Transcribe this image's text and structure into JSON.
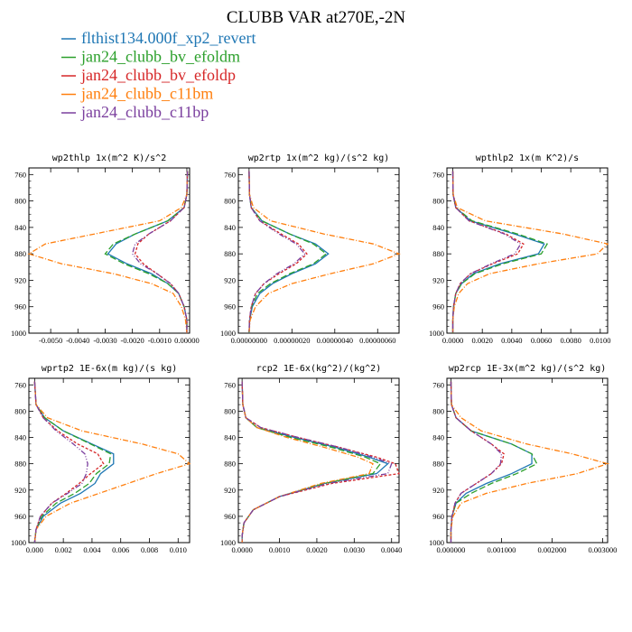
{
  "figure": {
    "title": "CLUBB VAR at270E,-2N"
  },
  "legend": [
    {
      "label": "flthist134.000f_xp2_revert",
      "color": "#1f77b4",
      "dash": "solid"
    },
    {
      "label": "jan24_clubb_bv_efoldm",
      "color": "#2ca02c",
      "dash": "longdash"
    },
    {
      "label": "jan24_clubb_bv_efoldp",
      "color": "#d62728",
      "dash": "dash"
    },
    {
      "label": "jan24_clubb_c11bm",
      "color": "#ff7f0e",
      "dash": "dashdot"
    },
    {
      "label": "jan24_clubb_c11bp",
      "color": "#7b3f9e",
      "dash": "dashdotdot"
    }
  ],
  "chart_data": [
    {
      "type": "line",
      "title": "wp2thlp  1x(m^2 K)/s^2",
      "xlim": [
        -0.0058,
        0.0001
      ],
      "ylim": [
        750,
        1000
      ],
      "y_reversed": true,
      "xticks": [
        -0.005,
        -0.004,
        -0.003,
        -0.002,
        -0.001,
        0.0
      ],
      "xtick_labels": [
        "-0.0050",
        "-0.0040",
        "-0.0030",
        "-0.0020",
        "-0.0010",
        "0.00000"
      ],
      "yticks": [
        760,
        800,
        840,
        880,
        920,
        960,
        1000
      ],
      "ytick_labels": [
        "760",
        "800",
        "840",
        "880",
        "920",
        "960",
        "1000"
      ],
      "y": [
        755,
        790,
        810,
        830,
        850,
        865,
        880,
        895,
        910,
        925,
        940,
        960,
        980,
        1000
      ],
      "series": [
        {
          "values": [
            2e-05,
            0.0,
            -0.0001,
            -0.0007,
            -0.0019,
            -0.0026,
            -0.0029,
            -0.0022,
            -0.0013,
            -0.0007,
            -0.0003,
            -0.0001,
            0.0,
            0.0
          ]
        },
        {
          "values": [
            2e-05,
            0.0,
            -0.0001,
            -0.0007,
            -0.0019,
            -0.0027,
            -0.003,
            -0.0023,
            -0.0014,
            -0.0007,
            -0.0003,
            -0.0001,
            0.0,
            0.0
          ]
        },
        {
          "values": [
            2e-05,
            0.0,
            -0.0001,
            -0.0006,
            -0.0014,
            -0.0018,
            -0.0019,
            -0.0016,
            -0.0011,
            -0.0006,
            -0.0003,
            -0.0001,
            0.0,
            0.0
          ]
        },
        {
          "values": [
            2e-05,
            0.0,
            -0.0002,
            -0.001,
            -0.0034,
            -0.0052,
            -0.0058,
            -0.0046,
            -0.0027,
            -0.0013,
            -0.0005,
            -0.0002,
            -5e-05,
            0.0
          ]
        },
        {
          "values": [
            2e-05,
            0.0,
            -0.0001,
            -0.0006,
            -0.0014,
            -0.0019,
            -0.002,
            -0.0017,
            -0.0011,
            -0.0006,
            -0.0003,
            -0.0001,
            0.0,
            0.0
          ]
        }
      ]
    },
    {
      "type": "line",
      "title": "wp2rtp  1x(m^2 kg)/(s^2 kg)",
      "xlim": [
        -5e-08,
        7e-07
      ],
      "ylim": [
        750,
        1000
      ],
      "y_reversed": true,
      "xticks": [
        0.0,
        2e-07,
        4e-07,
        6e-07
      ],
      "xtick_labels": [
        "0.00000000",
        "0.00000020",
        "0.00000040",
        "0.00000060"
      ],
      "yticks": [
        760,
        800,
        840,
        880,
        920,
        960,
        1000
      ],
      "ytick_labels": [
        "760",
        "800",
        "840",
        "880",
        "920",
        "960",
        "1000"
      ],
      "y": [
        755,
        790,
        810,
        830,
        850,
        865,
        880,
        895,
        910,
        925,
        940,
        960,
        980,
        1000
      ],
      "series": [
        {
          "values": [
            0.0,
            2e-09,
            1e-08,
            6e-08,
            1.9e-07,
            3.1e-07,
            3.7e-07,
            3.1e-07,
            2e-07,
            1.1e-07,
            5e-08,
            1.5e-08,
            3e-09,
            0.0
          ]
        },
        {
          "values": [
            0.0,
            2e-09,
            1e-08,
            6e-08,
            1.9e-07,
            3e-07,
            3.6e-07,
            3e-07,
            1.9e-07,
            1e-07,
            4e-08,
            1.2e-08,
            2e-09,
            0.0
          ]
        },
        {
          "values": [
            0.0,
            2e-09,
            1e-08,
            5e-08,
            1.5e-07,
            2.3e-07,
            2.7e-07,
            2.2e-07,
            1.4e-07,
            7e-08,
            3e-08,
            1e-08,
            2e-09,
            0.0
          ]
        },
        {
          "values": [
            0.0,
            2e-09,
            2e-08,
            1e-07,
            3.5e-07,
            5.8e-07,
            7e-07,
            5.8e-07,
            3.8e-07,
            2e-07,
            9e-08,
            3e-08,
            5e-09,
            0.0
          ]
        },
        {
          "values": [
            0.0,
            2e-09,
            1e-08,
            5e-08,
            1.4e-07,
            2.2e-07,
            2.6e-07,
            2.1e-07,
            1.3e-07,
            7e-08,
            3e-08,
            1e-08,
            2e-09,
            0.0
          ]
        }
      ]
    },
    {
      "type": "line",
      "title": "wpthlp2  1x(m K^2)/s",
      "xlim": [
        -0.0004,
        0.0105
      ],
      "ylim": [
        750,
        1000
      ],
      "y_reversed": true,
      "xticks": [
        0.0,
        0.002,
        0.004,
        0.006,
        0.008,
        0.01
      ],
      "xtick_labels": [
        "0.0000",
        "0.0020",
        "0.0040",
        "0.0060",
        "0.0080",
        "0.0100"
      ],
      "yticks": [
        760,
        800,
        840,
        880,
        920,
        960,
        1000
      ],
      "ytick_labels": [
        "760",
        "800",
        "840",
        "880",
        "920",
        "960",
        "1000"
      ],
      "y": [
        755,
        790,
        810,
        830,
        850,
        865,
        880,
        895,
        910,
        925,
        940,
        960,
        980,
        1000
      ],
      "series": [
        {
          "values": [
            0.0,
            2e-05,
            0.0002,
            0.0012,
            0.0042,
            0.0062,
            0.0058,
            0.0032,
            0.0014,
            0.0006,
            0.0002,
            5e-05,
            0.0,
            0.0
          ]
        },
        {
          "values": [
            0.0,
            2e-05,
            0.0002,
            0.0013,
            0.0044,
            0.0064,
            0.006,
            0.0034,
            0.0015,
            0.0006,
            0.0002,
            5e-05,
            0.0,
            0.0
          ]
        },
        {
          "values": [
            0.0,
            2e-05,
            0.0002,
            0.0011,
            0.0036,
            0.0048,
            0.0044,
            0.0027,
            0.0012,
            0.0005,
            0.0002,
            5e-05,
            0.0,
            0.0
          ]
        },
        {
          "values": [
            0.0,
            3e-05,
            0.0003,
            0.0022,
            0.0075,
            0.0105,
            0.0098,
            0.0058,
            0.0025,
            0.001,
            0.0004,
            0.0001,
            0.0,
            0.0
          ]
        },
        {
          "values": [
            0.0,
            2e-05,
            0.0002,
            0.0011,
            0.0035,
            0.0046,
            0.0042,
            0.0026,
            0.0012,
            0.0005,
            0.0002,
            5e-05,
            0.0,
            0.0
          ]
        }
      ]
    },
    {
      "type": "line",
      "title": "wprtp2  1E-6x(m kg)/(s kg)",
      "xlim": [
        -0.0004,
        0.0108
      ],
      "ylim": [
        750,
        1000
      ],
      "y_reversed": true,
      "xticks": [
        0.0,
        0.002,
        0.004,
        0.006,
        0.008,
        0.01
      ],
      "xtick_labels": [
        "0.000",
        "0.002",
        "0.004",
        "0.006",
        "0.008",
        "0.010"
      ],
      "yticks": [
        760,
        800,
        840,
        880,
        920,
        960,
        1000
      ],
      "ytick_labels": [
        "760",
        "800",
        "840",
        "880",
        "920",
        "960",
        "1000"
      ],
      "y": [
        755,
        790,
        810,
        830,
        850,
        865,
        880,
        895,
        910,
        925,
        940,
        960,
        980,
        1000
      ],
      "series": [
        {
          "values": [
            0.0,
            0.0001,
            0.0007,
            0.002,
            0.004,
            0.0055,
            0.0055,
            0.0046,
            0.0042,
            0.0032,
            0.0018,
            0.0006,
            0.0001,
            0.0
          ]
        },
        {
          "values": [
            0.0,
            0.0001,
            0.0007,
            0.002,
            0.0039,
            0.0053,
            0.0052,
            0.0043,
            0.0038,
            0.0028,
            0.0015,
            0.0005,
            0.0001,
            0.0
          ]
        },
        {
          "values": [
            0.0,
            0.0001,
            0.0006,
            0.0016,
            0.003,
            0.0044,
            0.0048,
            0.0039,
            0.0031,
            0.0022,
            0.0012,
            0.0004,
            0.0001,
            0.0
          ]
        },
        {
          "values": [
            0.0,
            0.0001,
            0.0009,
            0.0033,
            0.0075,
            0.01,
            0.0108,
            0.0085,
            0.0065,
            0.0045,
            0.0025,
            0.0008,
            0.0001,
            0.0
          ]
        },
        {
          "values": [
            0.0,
            0.0001,
            0.0006,
            0.0015,
            0.0027,
            0.0035,
            0.0037,
            0.0036,
            0.0033,
            0.0023,
            0.0012,
            0.0004,
            0.0001,
            0.0
          ]
        }
      ]
    },
    {
      "type": "line",
      "title": "rcp2  1E-6x(kg^2)/(kg^2)",
      "xlim": [
        -0.0001,
        0.0042
      ],
      "ylim": [
        750,
        1000
      ],
      "y_reversed": true,
      "xticks": [
        0.0,
        0.001,
        0.002,
        0.003,
        0.004
      ],
      "xtick_labels": [
        "0.0000",
        "0.0010",
        "0.0020",
        "0.0030",
        "0.0040"
      ],
      "yticks": [
        760,
        800,
        840,
        880,
        920,
        960,
        1000
      ],
      "ytick_labels": [
        "760",
        "800",
        "840",
        "880",
        "920",
        "960",
        "1000"
      ],
      "y": [
        755,
        790,
        810,
        825,
        840,
        855,
        870,
        880,
        895,
        910,
        930,
        950,
        970,
        990,
        1000
      ],
      "series": [
        {
          "values": [
            0.0,
            2e-05,
            0.0001,
            0.0004,
            0.0014,
            0.0025,
            0.0034,
            0.0039,
            0.0036,
            0.0022,
            0.001,
            0.0003,
            5e-05,
            0.0,
            0.0
          ]
        },
        {
          "values": [
            0.0,
            2e-05,
            0.0001,
            0.0004,
            0.0013,
            0.0024,
            0.0033,
            0.0037,
            0.0035,
            0.0022,
            0.001,
            0.0003,
            5e-05,
            0.0,
            0.0
          ]
        },
        {
          "values": [
            0.0,
            2e-05,
            0.0001,
            0.0005,
            0.0015,
            0.0026,
            0.0036,
            0.0041,
            0.0042,
            0.0024,
            0.001,
            0.0003,
            5e-05,
            0.0,
            0.0
          ]
        },
        {
          "values": [
            0.0,
            2e-05,
            0.0001,
            0.0004,
            0.0012,
            0.0022,
            0.0031,
            0.0035,
            0.0034,
            0.0021,
            0.001,
            0.0003,
            5e-05,
            0.0,
            0.0
          ]
        },
        {
          "values": [
            0.0,
            2e-05,
            0.0001,
            0.0005,
            0.0015,
            0.0026,
            0.0035,
            0.004,
            0.0039,
            0.0023,
            0.001,
            0.0003,
            5e-05,
            0.0,
            0.0
          ]
        }
      ]
    },
    {
      "type": "line",
      "title": "wp2rcp  1E-3x(m^2 kg)/(s^2 kg)",
      "xlim": [
        -8e-05,
        0.0031
      ],
      "ylim": [
        750,
        1000
      ],
      "y_reversed": true,
      "xticks": [
        0.0,
        0.001,
        0.002,
        0.003
      ],
      "xtick_labels": [
        "0.000000",
        "0.001000",
        "0.002000",
        "0.003000"
      ],
      "yticks": [
        760,
        800,
        840,
        880,
        920,
        960,
        1000
      ],
      "ytick_labels": [
        "760",
        "800",
        "840",
        "880",
        "920",
        "960",
        "1000"
      ],
      "y": [
        755,
        790,
        810,
        830,
        850,
        865,
        880,
        895,
        910,
        925,
        940,
        960,
        980,
        1000
      ],
      "series": [
        {
          "values": [
            0.0,
            1e-05,
            0.0001,
            0.0004,
            0.0012,
            0.0016,
            0.0016,
            0.0012,
            0.0007,
            0.0003,
            0.0001,
            2e-05,
            0.0,
            0.0
          ]
        },
        {
          "values": [
            0.0,
            1e-05,
            0.0001,
            0.0004,
            0.0012,
            0.0016,
            0.0017,
            0.0013,
            0.0008,
            0.0004,
            0.0001,
            2e-05,
            0.0,
            0.0
          ]
        },
        {
          "values": [
            0.0,
            1e-05,
            0.0001,
            0.0004,
            0.0008,
            0.00105,
            0.001,
            0.0008,
            0.0005,
            0.0002,
            8e-05,
            2e-05,
            0.0,
            0.0
          ]
        },
        {
          "values": [
            0.0,
            1e-05,
            0.0002,
            0.0006,
            0.0015,
            0.0024,
            0.0031,
            0.0025,
            0.0015,
            0.0007,
            0.0002,
            4e-05,
            0.0,
            0.0
          ]
        },
        {
          "values": [
            0.0,
            1e-05,
            0.0001,
            0.0004,
            0.0008,
            0.001,
            0.00098,
            0.0008,
            0.0005,
            0.0002,
            8e-05,
            2e-05,
            0.0,
            0.0
          ]
        }
      ]
    }
  ]
}
